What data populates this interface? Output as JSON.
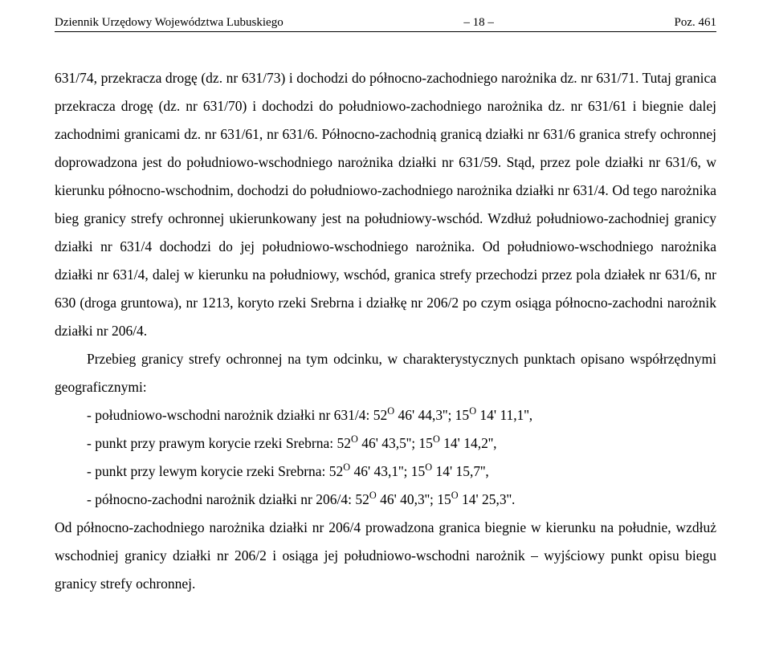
{
  "header": {
    "left": "Dziennik Urzędowy Województwa Lubuskiego",
    "center": "– 18 –",
    "right": "Poz. 461"
  },
  "body": {
    "p1": "631/74, przekracza drogę (dz. nr 631/73) i dochodzi do północno-zachodniego narożnika dz. nr 631/71. Tutaj granica przekracza drogę (dz. nr 631/70) i dochodzi do południowo-zachodniego narożnika dz. nr 631/61 i biegnie dalej zachodnimi granicami dz. nr 631/61, nr 631/6. Północno-zachodnią granicą działki nr 631/6 granica strefy ochronnej doprowadzona jest do południowo-wschodniego narożnika działki nr 631/59. Stąd, przez pole działki nr 631/6, w kierunku północno-wschodnim, dochodzi do południowo-zachodniego narożnika działki nr 631/4. Od tego narożnika bieg granicy strefy ochronnej ukierunkowany jest na południowy-wschód. Wzdłuż południowo-zachodniej granicy działki nr 631/4 dochodzi do jej południowo-wschodniego narożnika. Od południowo-wschodniego narożnika działki nr 631/4, dalej w kierunku na południowy, wschód, granica strefy przechodzi przez pola działek nr 631/6, nr 630 (droga gruntowa), nr 1213, koryto rzeki Srebrna i działkę nr 206/2 po czym osiąga północno-zachodni narożnik działki nr 206/4.",
    "p2": "Przebieg granicy strefy ochronnej na tym odcinku, w charakterystycznych punktach opisano współrzędnymi geograficznymi:",
    "c1_pre": "- południowo-wschodni narożnik działki nr 631/4: 52",
    "c1_sup1": "O",
    "c1_mid": " 46' 44,3''; 15",
    "c1_sup2": "O",
    "c1_post": " 14' 11,1'',",
    "c2_pre": "- punkt przy prawym korycie rzeki Srebrna: 52",
    "c2_sup1": "O",
    "c2_mid": " 46' 43,5''; 15",
    "c2_sup2": "O",
    "c2_post": " 14' 14,2'',",
    "c3_pre": "- punkt przy lewym korycie rzeki Srebrna: 52",
    "c3_sup1": "O",
    "c3_mid": " 46' 43,1''; 15",
    "c3_sup2": "O",
    "c3_post": " 14' 15,7'',",
    "c4_pre": "- północno-zachodni narożnik działki nr 206/4: 52",
    "c4_sup1": "O",
    "c4_mid": " 46' 40,3''; 15",
    "c4_sup2": "O",
    "c4_post": " 14' 25,3''.",
    "p3": "Od północno-zachodniego narożnika działki nr 206/4 prowadzona granica biegnie w kierunku na południe, wzdłuż wschodniej granicy działki nr 206/2 i osiąga jej południowo-wschodni narożnik – wyjściowy punkt opisu biegu granicy strefy ochronnej."
  }
}
